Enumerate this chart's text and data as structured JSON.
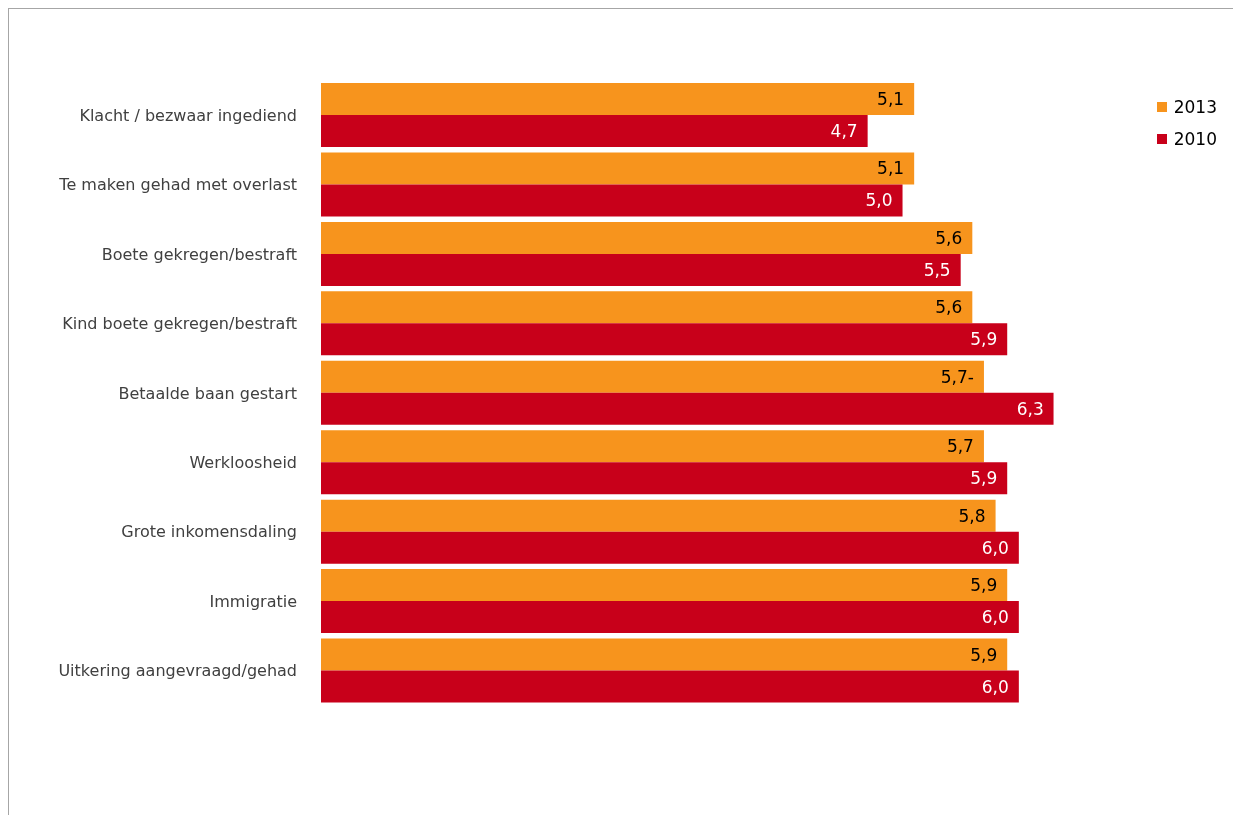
{
  "chart_data": {
    "type": "bar",
    "orientation": "horizontal",
    "tick_labels": "y",
    "legend": "top right",
    "categories": [
      "Klacht / bezwaar ingediend",
      "Te maken gehad met overlast",
      "Boete gekregen/bestraft",
      "Kind boete gekregen/bestraft",
      "Betaalde baan gestart",
      "Werkloosheid",
      "Grote inkomensdaling",
      "Immigratie",
      "Uitkering aangevraagd/gehad"
    ],
    "series": [
      {
        "name": "2013",
        "color": "#f7941d",
        "values": [
          5.1,
          5.1,
          5.6,
          5.6,
          5.7,
          5.7,
          5.8,
          5.9,
          5.9
        ],
        "value_labels": [
          "5,1",
          "5,1",
          "5,6",
          "5,6",
          "5,7-",
          "5,7",
          "5,8",
          "5,9",
          "5,9"
        ]
      },
      {
        "name": "2010",
        "color": "#c8001a",
        "values": [
          4.7,
          5.0,
          5.5,
          5.9,
          6.3,
          5.9,
          6.0,
          6.0,
          6.0
        ],
        "value_labels": [
          "4,7",
          "5,0",
          "5,5",
          "5,9",
          "6,3",
          "5,9",
          "6,0",
          "6,0",
          "6,0"
        ]
      }
    ]
  }
}
